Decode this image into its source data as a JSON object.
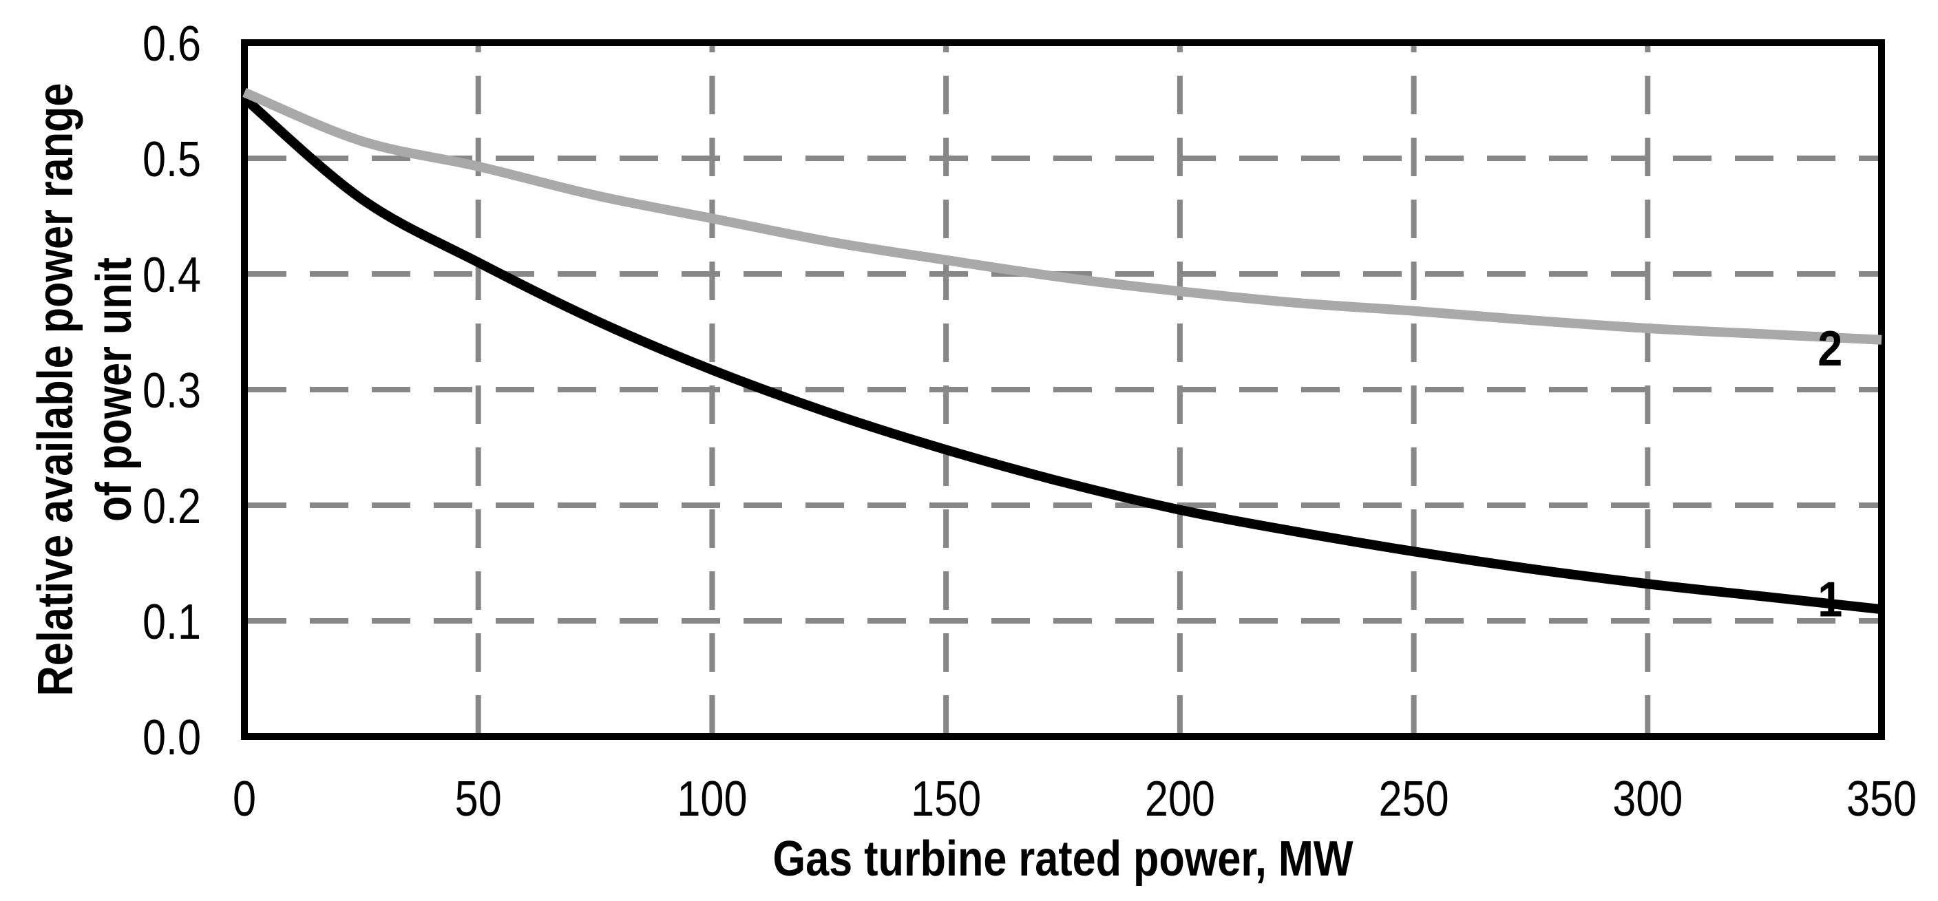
{
  "style": {
    "background": "#ffffff",
    "axis_color": "#000000",
    "text_color": "#000000",
    "gridline_color": "#878787"
  },
  "chart_data": {
    "type": "line",
    "title": "",
    "xlabel": "Gas turbine rated power, MW",
    "ylabel": "Relative available power range of power unit",
    "ylabel_lines": [
      "Relative available power range",
      "of power unit"
    ],
    "xlim": [
      0,
      350
    ],
    "ylim": [
      0,
      0.6
    ],
    "xticks": [
      "0",
      "50",
      "100",
      "150",
      "200",
      "250",
      "300",
      "350"
    ],
    "yticks": [
      "0.0",
      "0.1",
      "0.2",
      "0.3",
      "0.4",
      "0.5",
      "0.6"
    ],
    "grid": {
      "style": "dashed",
      "color": "#878787",
      "on": true
    },
    "legend_position": "labels-on-curves",
    "x": [
      0,
      25,
      50,
      75,
      100,
      125,
      150,
      175,
      200,
      225,
      250,
      275,
      300,
      325,
      350
    ],
    "series": [
      {
        "name": "1",
        "color": "#000000",
        "stroke_width": 14,
        "values": [
          0.552,
          0.465,
          0.41,
          0.36,
          0.317,
          0.28,
          0.248,
          0.22,
          0.196,
          0.177,
          0.16,
          0.145,
          0.132,
          0.121,
          0.11
        ],
        "label_at": {
          "x": 339,
          "y": 0.12
        }
      },
      {
        "name": "2",
        "color": "#a9a9a9",
        "stroke_width": 14,
        "values": [
          0.557,
          0.515,
          0.493,
          0.468,
          0.448,
          0.428,
          0.412,
          0.397,
          0.385,
          0.375,
          0.368,
          0.36,
          0.353,
          0.348,
          0.343
        ],
        "label_at": {
          "x": 339,
          "y": 0.337
        }
      }
    ]
  }
}
